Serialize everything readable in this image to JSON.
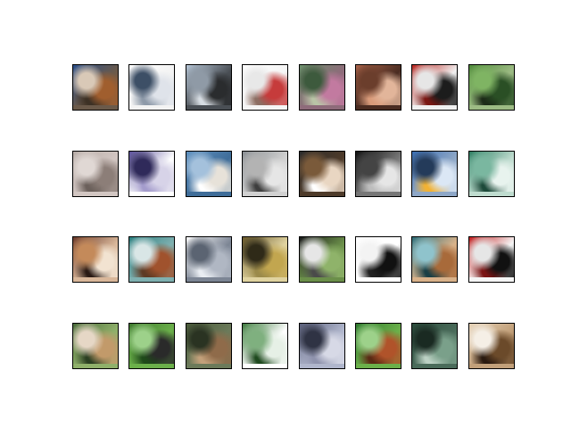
{
  "grid": {
    "rows": 4,
    "cols": 8
  },
  "tiles": [
    {
      "thumbnail": "cat-thumbnail",
      "colors": [
        "#2a4f8a",
        "#a05e2e",
        "#d9c9b7",
        "#3d3125",
        "#6b5a4a"
      ]
    },
    {
      "thumbnail": "ship-thumbnail",
      "colors": [
        "#ffffff",
        "#dfe3ea",
        "#3d4f66",
        "#8e9aa9",
        "#f3f3f3"
      ]
    },
    {
      "thumbnail": "ship-thumbnail",
      "colors": [
        "#b7c7d8",
        "#2a2c2e",
        "#8f9aa6",
        "#d7dde3",
        "#4a4f55"
      ]
    },
    {
      "thumbnail": "airplane-thumbnail",
      "colors": [
        "#ffffff",
        "#c63b3b",
        "#e8e8e8",
        "#8d6e63",
        "#f5f5f5"
      ]
    },
    {
      "thumbnail": "frog-thumbnail",
      "colors": [
        "#6b8f6b",
        "#c27aa0",
        "#3d5a3d",
        "#b9c4a6",
        "#8e6b7a"
      ]
    },
    {
      "thumbnail": "frog-thumbnail",
      "colors": [
        "#a9634a",
        "#e2b59a",
        "#6b3e2c",
        "#d99b7a",
        "#4a2c21"
      ]
    },
    {
      "thumbnail": "automobile-thumbnail",
      "colors": [
        "#b8251f",
        "#1c1c1c",
        "#e6e6e6",
        "#7a1713",
        "#f0f0f0"
      ]
    },
    {
      "thumbnail": "frog-thumbnail",
      "colors": [
        "#4f8a3a",
        "#2a4f25",
        "#7fb463",
        "#1d2b18",
        "#9dbb84"
      ]
    },
    {
      "thumbnail": "cat-thumbnail",
      "colors": [
        "#b7aca7",
        "#8c7e78",
        "#e0d8d4",
        "#6b605b",
        "#d2c6c2"
      ]
    },
    {
      "thumbnail": "truck-thumbnail",
      "colors": [
        "#5a4f9a",
        "#d7d3e8",
        "#2f2a5a",
        "#a49ccc",
        "#ffffff"
      ]
    },
    {
      "thumbnail": "airplane-thumbnail",
      "colors": [
        "#5e90bf",
        "#e7e2d9",
        "#a4c1dc",
        "#ffffff",
        "#3f6d99"
      ]
    },
    {
      "thumbnail": "truck-thumbnail",
      "colors": [
        "#8a8f93",
        "#e6e6e6",
        "#b3b3b3",
        "#3e3e3e",
        "#d1d1d1"
      ]
    },
    {
      "thumbnail": "dog-thumbnail",
      "colors": [
        "#2b2b2b",
        "#e9d6c2",
        "#7a5a3a",
        "#ffffff",
        "#4e3b2a"
      ]
    },
    {
      "thumbnail": "horse-thumbnail",
      "colors": [
        "#111111",
        "#e6e6e6",
        "#444444",
        "#bdbdbd",
        "#777777"
      ]
    },
    {
      "thumbnail": "truck-thumbnail",
      "colors": [
        "#3a6db1",
        "#dbe7f5",
        "#243b5a",
        "#f2b233",
        "#8ea7c7"
      ]
    },
    {
      "thumbnail": "ship-thumbnail",
      "colors": [
        "#2f7f63",
        "#e8f3ee",
        "#7ab7a0",
        "#1d4a3a",
        "#bfdccf"
      ]
    },
    {
      "thumbnail": "dog-thumbnail",
      "colors": [
        "#6b3a2b",
        "#f2e3d1",
        "#c48a5a",
        "#2a1a14",
        "#d9b79a"
      ]
    },
    {
      "thumbnail": "horse-thumbnail",
      "colors": [
        "#2a7f7f",
        "#a0522d",
        "#d9e6e6",
        "#5e3a24",
        "#7fb0b0"
      ]
    },
    {
      "thumbnail": "ship-thumbnail",
      "colors": [
        "#ffffff",
        "#b0b7c3",
        "#5b6472",
        "#e9edf2",
        "#7c8594"
      ]
    },
    {
      "thumbnail": "deer-thumbnail",
      "colors": [
        "#6b5a2b",
        "#c2a64f",
        "#2f2a18",
        "#9b8a4a",
        "#e0d3a0"
      ]
    },
    {
      "thumbnail": "horse-thumbnail",
      "colors": [
        "#1a1a1a",
        "#8fb36a",
        "#e6e6e6",
        "#4a4a4a",
        "#6b8f4a"
      ]
    },
    {
      "thumbnail": "bird-thumbnail",
      "colors": [
        "#ffffff",
        "#111111",
        "#f3f3f3",
        "#222222",
        "#ffffff"
      ]
    },
    {
      "thumbnail": "bird-thumbnail",
      "colors": [
        "#2f6f7a",
        "#a86a3a",
        "#8fc3cc",
        "#1a3f45",
        "#d9b28a"
      ]
    },
    {
      "thumbnail": "automobile-thumbnail",
      "colors": [
        "#c21f1f",
        "#111111",
        "#e6e6e6",
        "#7a1313",
        "#f5f5f5"
      ]
    },
    {
      "thumbnail": "horse-thumbnail",
      "colors": [
        "#4a6b3a",
        "#c29a6a",
        "#e6d7c6",
        "#2b3f22",
        "#8fb06a"
      ]
    },
    {
      "thumbnail": "horse-thumbnail",
      "colors": [
        "#3f7a2f",
        "#2a2a2a",
        "#9dd18a",
        "#1f4a1a",
        "#6bb04a"
      ]
    },
    {
      "thumbnail": "deer-thumbnail",
      "colors": [
        "#4a5a3a",
        "#8f6b4a",
        "#2a3322",
        "#c2a07a",
        "#6b7a5a"
      ]
    },
    {
      "thumbnail": "airplane-thumbnail",
      "colors": [
        "#3f7a3f",
        "#e6f0e6",
        "#7fb07f",
        "#1f4a1f",
        "#ffffff"
      ]
    },
    {
      "thumbnail": "truck-thumbnail",
      "colors": [
        "#5a5f7a",
        "#d7d9e6",
        "#2f3344",
        "#8f93ad",
        "#b0b6cc"
      ]
    },
    {
      "thumbnail": "bird-thumbnail",
      "colors": [
        "#2f7a2f",
        "#b0532a",
        "#9dd18a",
        "#5a2a14",
        "#6bb04a"
      ]
    },
    {
      "thumbnail": "frog-thumbnail",
      "colors": [
        "#2a4a3a",
        "#7aa08a",
        "#1a2a22",
        "#bcd1c4",
        "#4a6b5a"
      ]
    },
    {
      "thumbnail": "dog-thumbnail",
      "colors": [
        "#e6d3b8",
        "#6b4a2a",
        "#f5efe6",
        "#2a1a10",
        "#c2a07a"
      ]
    }
  ]
}
